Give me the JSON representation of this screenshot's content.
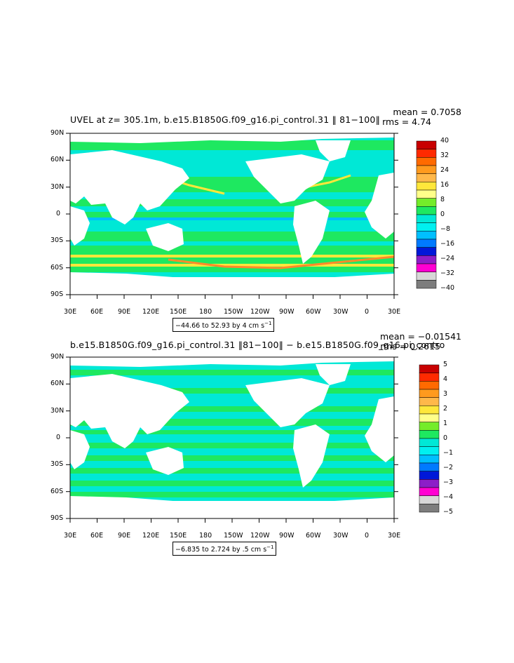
{
  "colors": {
    "ocean_zero": "#00e8d6",
    "ocean_low": "#1ee860",
    "positive_mid": "#ffe73b",
    "positive_high": "#ff8a2a",
    "negative_mid": "#00bfff",
    "land": "#ffffff"
  },
  "panels": [
    {
      "title": "UVEL at z= 305.1m, b.e15.B1850G.f09_g16.pi_control.31 ‖ 81−100‖",
      "mean": "mean = 0.7058",
      "rms": "rms = 4.74",
      "y_ticks": [
        "90N",
        "60N",
        "30N",
        "0",
        "30S",
        "60S",
        "90S"
      ],
      "x_ticks": [
        "30E",
        "60E",
        "90E",
        "120E",
        "150E",
        "180",
        "150W",
        "120W",
        "90W",
        "60W",
        "30W",
        "0",
        "30E"
      ],
      "range_text": "−44.66 to 52.93 by 4 cm s",
      "range_sup": "−1",
      "colorbar": {
        "labels": [
          "40",
          "32",
          "24",
          "16",
          "8",
          "0",
          "−8",
          "−16",
          "−24",
          "−32",
          "−40"
        ],
        "colors": [
          "#c80000",
          "#ff2a00",
          "#ff6a00",
          "#ff9a1e",
          "#ffb84a",
          "#ffe73b",
          "#ffff8a",
          "#74ec2a",
          "#1ee860",
          "#00e8d6",
          "#00f0f0",
          "#00bfff",
          "#007aff",
          "#0018d8",
          "#8c1ec8",
          "#ff00d2",
          "#d7d7d7",
          "#7d7d7d"
        ]
      }
    },
    {
      "title": "b.e15.B1850G.f09_g16.pi_control.31 ‖81−100‖ − b.e15.B1850G.f09_g16.pi_contro",
      "mean": "mean = −0.01541",
      "rms": "rms = 0.2615",
      "y_ticks": [
        "90N",
        "60N",
        "30N",
        "0",
        "30S",
        "60S",
        "90S"
      ],
      "x_ticks": [
        "30E",
        "60E",
        "90E",
        "120E",
        "150E",
        "180",
        "150W",
        "120W",
        "90W",
        "60W",
        "30W",
        "0",
        "30E"
      ],
      "range_text": "−6.835 to 2.724 by .5 cm s",
      "range_sup": "−1",
      "colorbar": {
        "labels": [
          "5",
          "4",
          "3",
          "2",
          "1",
          "0",
          "−1",
          "−2",
          "−3",
          "−4",
          "−5"
        ],
        "colors": [
          "#c80000",
          "#ff2a00",
          "#ff6a00",
          "#ff9a1e",
          "#ffb84a",
          "#ffe73b",
          "#ffff8a",
          "#74ec2a",
          "#1ee860",
          "#00e8d6",
          "#00f0f0",
          "#00bfff",
          "#007aff",
          "#0018d8",
          "#8c1ec8",
          "#ff00d2",
          "#d7d7d7",
          "#7d7d7d"
        ]
      }
    }
  ]
}
